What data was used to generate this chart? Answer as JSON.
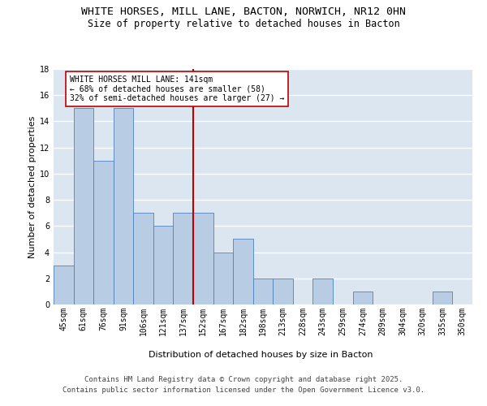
{
  "title_line1": "WHITE HORSES, MILL LANE, BACTON, NORWICH, NR12 0HN",
  "title_line2": "Size of property relative to detached houses in Bacton",
  "xlabel": "Distribution of detached houses by size in Bacton",
  "ylabel": "Number of detached properties",
  "categories": [
    "45sqm",
    "61sqm",
    "76sqm",
    "91sqm",
    "106sqm",
    "121sqm",
    "137sqm",
    "152sqm",
    "167sqm",
    "182sqm",
    "198sqm",
    "213sqm",
    "228sqm",
    "243sqm",
    "259sqm",
    "274sqm",
    "289sqm",
    "304sqm",
    "320sqm",
    "335sqm",
    "350sqm"
  ],
  "values": [
    3,
    15,
    11,
    15,
    7,
    6,
    7,
    7,
    4,
    5,
    2,
    2,
    0,
    2,
    0,
    1,
    0,
    0,
    0,
    1,
    0
  ],
  "bar_color": "#b8cce4",
  "bar_edge_color": "#4f81bd",
  "background_color": "#dce6f1",
  "grid_color": "#ffffff",
  "vline_x": 7.0,
  "vline_color": "#c00000",
  "annotation_text": "WHITE HORSES MILL LANE: 141sqm\n← 68% of detached houses are smaller (58)\n32% of semi-detached houses are larger (27) →",
  "annotation_box_color": "#ffffff",
  "annotation_box_edge_color": "#c00000",
  "ylim": [
    0,
    18
  ],
  "yticks": [
    0,
    2,
    4,
    6,
    8,
    10,
    12,
    14,
    16,
    18
  ],
  "footnote": "Contains HM Land Registry data © Crown copyright and database right 2025.\nContains public sector information licensed under the Open Government Licence v3.0.",
  "title_fontsize": 9.5,
  "subtitle_fontsize": 8.5,
  "axis_label_fontsize": 8,
  "tick_fontsize": 7,
  "annotation_fontsize": 7,
  "footnote_fontsize": 6.5
}
